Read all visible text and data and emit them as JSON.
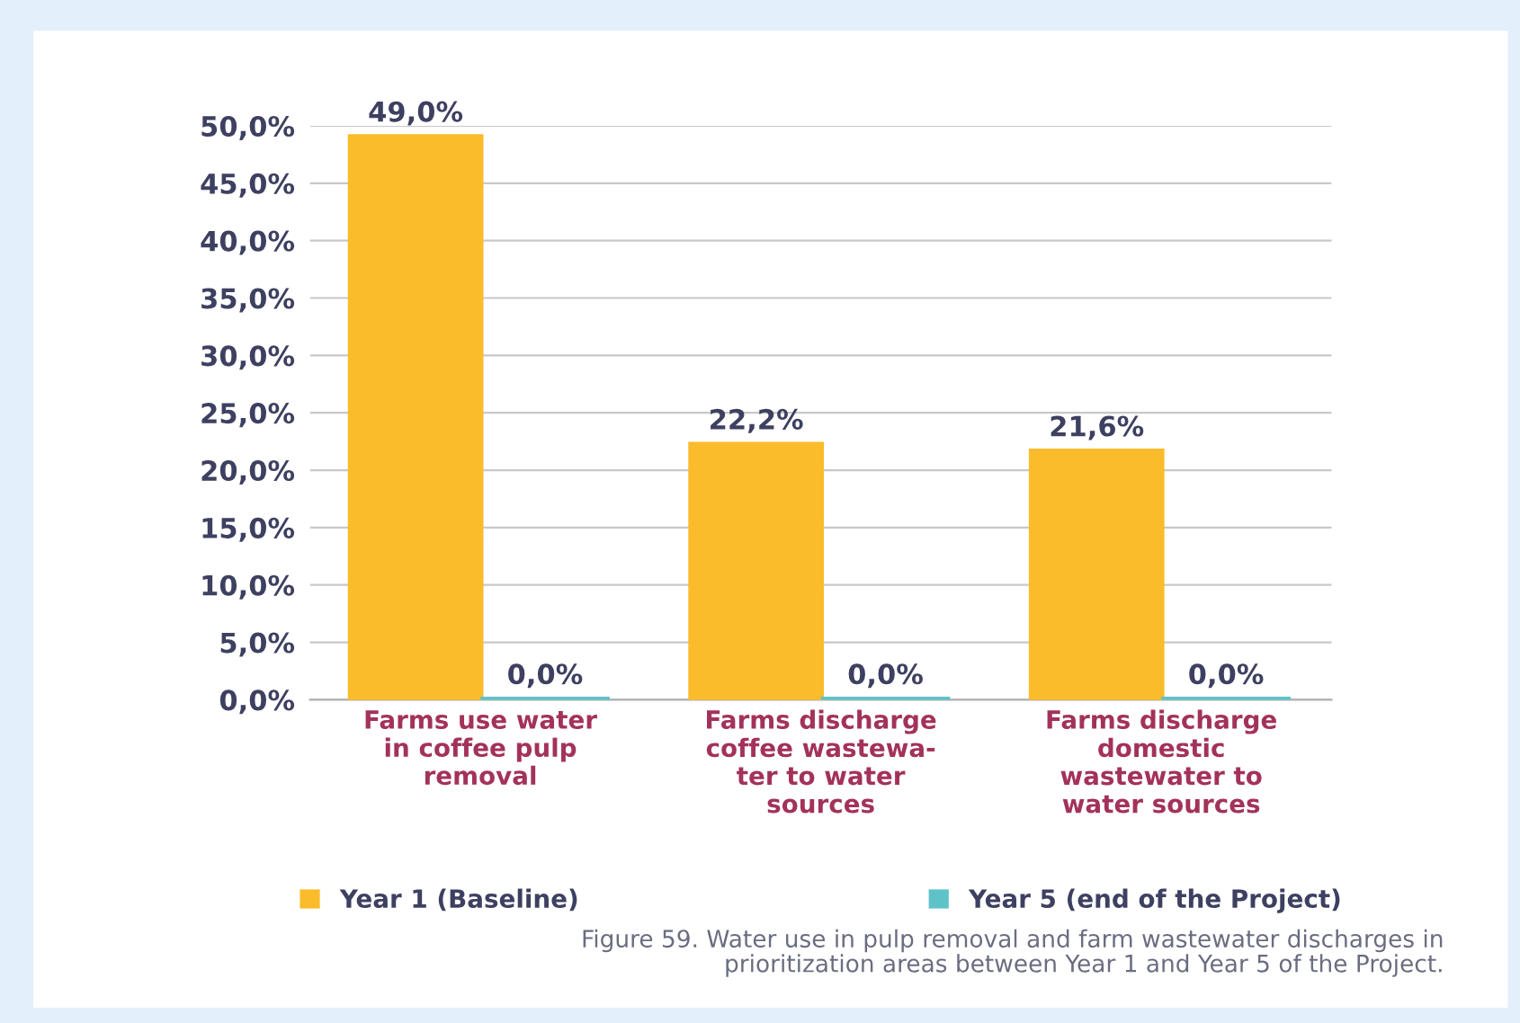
{
  "chart_data": {
    "type": "bar",
    "categories": [
      "Farms use water\nin coffee pulp\nremoval",
      "Farms discharge\ncoffee wastewa-\nter to water\nsources",
      "Farms discharge\ndomestic\nwastewater to\nwater sources"
    ],
    "series": [
      {
        "name": "Year 1 (Baseline)",
        "color": "#fbbc2b",
        "values": [
          49.0,
          22.2,
          21.6
        ],
        "value_labels": [
          "49,0%",
          "22,2%",
          "21,6%"
        ]
      },
      {
        "name": "Year 5 (end of the Project)",
        "color": "#5ec3c9",
        "values": [
          0.0,
          0.0,
          0.0
        ],
        "value_labels": [
          "0,0%",
          "0,0%",
          "0,0%"
        ]
      }
    ],
    "ylim": [
      0,
      50
    ],
    "yticks": [
      {
        "value": 0,
        "label": "0,0%"
      },
      {
        "value": 5,
        "label": "5,0%"
      },
      {
        "value": 10,
        "label": "10,0%"
      },
      {
        "value": 15,
        "label": "15,0%"
      },
      {
        "value": 20,
        "label": "20,0%"
      },
      {
        "value": 25,
        "label": "25,0%"
      },
      {
        "value": 30,
        "label": "30,0%"
      },
      {
        "value": 35,
        "label": "35,0%"
      },
      {
        "value": 40,
        "label": "40,0%"
      },
      {
        "value": 45,
        "label": "45,0%"
      },
      {
        "value": 50,
        "label": "50,0%"
      }
    ],
    "grid": "y",
    "legend": "bottom",
    "annotations": [
      "Figure 59. Water use in pulp removal and farm wastewater discharges in\nprioritization areas between Year 1 and Year 5 of the Project."
    ]
  }
}
